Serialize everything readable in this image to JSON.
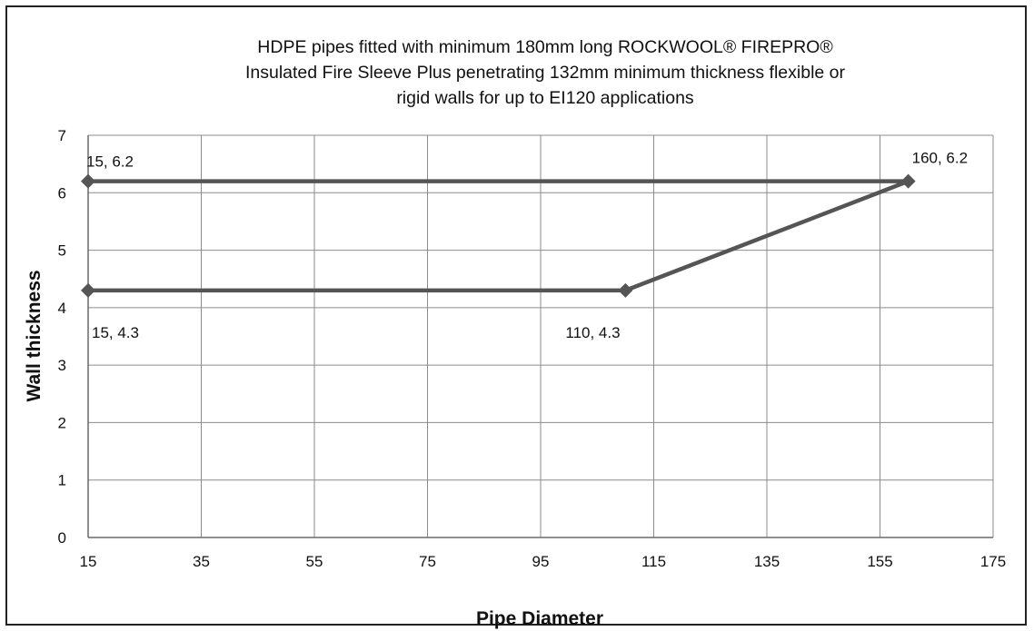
{
  "chart_data": {
    "type": "line",
    "title_lines": [
      "HDPE pipes fitted with  minimum 180mm long ROCKWOOL® FIREPRO®",
      "Insulated Fire Sleeve Plus penetrating 132mm minimum thickness flexible or",
      "rigid walls for up to EI120 applications"
    ],
    "xlabel": "Pipe Diameter",
    "ylabel": "Wall thickness",
    "xlim": [
      15,
      175
    ],
    "ylim": [
      0,
      7
    ],
    "x_ticks": [
      "15",
      "35",
      "55",
      "75",
      "95",
      "115",
      "135",
      "155",
      "175"
    ],
    "y_ticks": [
      "0",
      "1",
      "2",
      "3",
      "4",
      "5",
      "6",
      "7"
    ],
    "grid": true,
    "line_color": "#555555",
    "series": [
      {
        "x": [
          15,
          110,
          160,
          15
        ],
        "y": [
          4.3,
          4.3,
          6.2,
          6.2
        ],
        "point_labels": [
          "15, 4.3",
          "110, 4.3",
          "160, 6.2",
          "15, 6.2"
        ]
      }
    ]
  }
}
